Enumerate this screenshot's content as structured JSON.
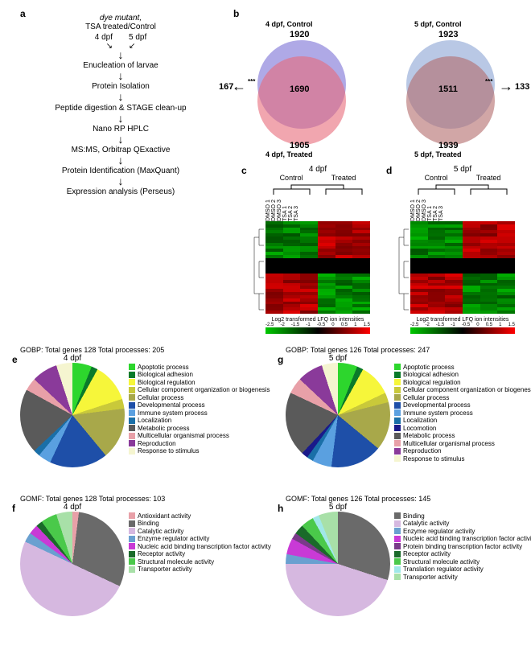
{
  "panel_a": {
    "label": "a",
    "title_line1": "dye mutant,",
    "title_line2": "TSA treated/Control",
    "split_left": "4 dpf",
    "split_right": "5 dpf",
    "steps": [
      "Enucleation of larvae",
      "Protein Isolation",
      "Peptide digestion & STAGE clean-up",
      "Nano RP HPLC",
      "MS:MS, Orbitrap QExactive",
      "Protein Identification (MaxQuant)",
      "Expression analysis (Perseus)"
    ]
  },
  "panel_b": {
    "label": "b",
    "venn1": {
      "top_label": "4 dpf, Control",
      "top_n": "1920",
      "overlap": "1690",
      "bottom_n": "1905",
      "bottom_label": "4 dpf, Treated",
      "out_left": "167",
      "sig": "***",
      "color_top": "#7a6fd6",
      "color_bottom": "#e86a7a"
    },
    "venn2": {
      "top_label": "5 dpf, Control",
      "top_n": "1923",
      "overlap": "1511",
      "bottom_n": "1939",
      "bottom_label": "5 dpf, Treated",
      "out_right": "133",
      "sig": "***",
      "color_top": "#8ba3d4",
      "color_bottom": "#b36a6a"
    }
  },
  "panel_c": {
    "label": "c",
    "title": "4 dpf",
    "group1": "Control",
    "group2": "Treated",
    "cols": [
      "DMSO 1",
      "DMSO 2",
      "DMSO 3",
      "TSA 1",
      "TSA 2",
      "TSA 3"
    ],
    "scale_label": "Log2 transformed LFQ ion intensities",
    "scale_ticks": [
      "-2.5",
      "-2",
      "-1.5",
      "-1",
      "-0.5",
      "0",
      "0.5",
      "1",
      "1.5"
    ],
    "color_low": "#00c800",
    "color_mid": "#000000",
    "color_high": "#ff0000"
  },
  "panel_d": {
    "label": "d",
    "title": "5 dpf",
    "group1": "Control",
    "group2": "Treated",
    "cols": [
      "DMSO 1",
      "DMSO 2",
      "DMSO 3",
      "TSA 1",
      "TSA 2",
      "TSA 3"
    ],
    "scale_label": "Log2 transformed LFQ ion intensities",
    "scale_ticks": [
      "-2.5",
      "-2",
      "-1.5",
      "-1",
      "-0.5",
      "0",
      "0.5",
      "1",
      "1.5"
    ]
  },
  "panel_e": {
    "label": "e",
    "title": "GOBP: Total genes 128 Total processes: 205",
    "subtitle": "4 dpf",
    "slices": [
      {
        "label": "Apoptotic process",
        "color": "#2dd62d",
        "value": 6
      },
      {
        "label": "Biological adhesion",
        "color": "#0a7a2a",
        "value": 2
      },
      {
        "label": "Biological regulation",
        "color": "#f6f63a",
        "value": 12
      },
      {
        "label": "Cellular component organization or biogenesis",
        "color": "#c9c93a",
        "value": 3
      },
      {
        "label": "Cellular process",
        "color": "#a8a84a",
        "value": 16
      },
      {
        "label": "Developmental process",
        "color": "#1e4fa8",
        "value": 18
      },
      {
        "label": "Immune system process",
        "color": "#5aa0e0",
        "value": 4
      },
      {
        "label": "Localization",
        "color": "#1a6fa8",
        "value": 2
      },
      {
        "label": "Metabolic process",
        "color": "#5a5a5a",
        "value": 20
      },
      {
        "label": "Multicellular organismal process",
        "color": "#e8a0a8",
        "value": 4
      },
      {
        "label": "Reproduction",
        "color": "#8a3a9a",
        "value": 8
      },
      {
        "label": "Response to stimulus",
        "color": "#f5f5d0",
        "value": 5
      }
    ]
  },
  "panel_f": {
    "label": "f",
    "title": "GOMF: Total genes 128 Total processes: 103",
    "subtitle": "4 dpf",
    "slices": [
      {
        "label": "Antioxidant activity",
        "color": "#e8a0a8",
        "value": 2
      },
      {
        "label": "Binding",
        "color": "#6a6a6a",
        "value": 30
      },
      {
        "label": "Catalytic activity",
        "color": "#d6b8e0",
        "value": 50
      },
      {
        "label": "Enzyme regulator activity",
        "color": "#6aa0d0",
        "value": 3
      },
      {
        "label": "Nucleic acid binding transcription factor activity",
        "color": "#c93ad6",
        "value": 3
      },
      {
        "label": "Receptor activity",
        "color": "#1a6a2a",
        "value": 2
      },
      {
        "label": "Structural molecule activity",
        "color": "#4ac94a",
        "value": 5
      },
      {
        "label": "Transporter activity",
        "color": "#a8e0a8",
        "value": 5
      }
    ]
  },
  "panel_g": {
    "label": "g",
    "title": "GOBP: Total genes 126 Total processes: 247",
    "subtitle": "5 dpf",
    "slices": [
      {
        "label": "Apoptotic process",
        "color": "#2dd62d",
        "value": 6
      },
      {
        "label": "Biological adhesion",
        "color": "#0a7a2a",
        "value": 2
      },
      {
        "label": "Biological regulation",
        "color": "#f6f63a",
        "value": 10
      },
      {
        "label": "Cellular component organization or biogenesis",
        "color": "#c9c93a",
        "value": 3
      },
      {
        "label": "Cellular process",
        "color": "#a8a84a",
        "value": 15
      },
      {
        "label": "Developmental process",
        "color": "#1e4fa8",
        "value": 16
      },
      {
        "label": "Immune system process",
        "color": "#5aa0e0",
        "value": 6
      },
      {
        "label": "Localization",
        "color": "#1a6fa8",
        "value": 2
      },
      {
        "label": "Locomotion",
        "color": "#1a1a8a",
        "value": 2
      },
      {
        "label": "Metabolic process",
        "color": "#5a5a5a",
        "value": 20
      },
      {
        "label": "Multicellular organismal process",
        "color": "#e8a0a8",
        "value": 5
      },
      {
        "label": "Reproduction",
        "color": "#8a3a9a",
        "value": 8
      },
      {
        "label": "Response to stimulus",
        "color": "#f5f5d0",
        "value": 5
      }
    ]
  },
  "panel_h": {
    "label": "h",
    "title": "GOMF: Total genes 126 Total processes: 145",
    "subtitle": "5 dpf",
    "slices": [
      {
        "label": "Binding",
        "color": "#6a6a6a",
        "value": 30
      },
      {
        "label": "Catalytic activity",
        "color": "#d6b8e0",
        "value": 45
      },
      {
        "label": "Enzyme regulator activity",
        "color": "#6aa0d0",
        "value": 3
      },
      {
        "label": "Nucleic acid binding transcription factor activity",
        "color": "#c93ad6",
        "value": 5
      },
      {
        "label": "Protein binding transcription factor activity",
        "color": "#7a3a8a",
        "value": 2
      },
      {
        "label": "Receptor activity",
        "color": "#1a6a2a",
        "value": 3
      },
      {
        "label": "Structural molecule activity",
        "color": "#4ac94a",
        "value": 4
      },
      {
        "label": "Translation regulator activity",
        "color": "#a0e8e8",
        "value": 2
      },
      {
        "label": "Transporter activity",
        "color": "#a8e0a8",
        "value": 6
      }
    ]
  }
}
